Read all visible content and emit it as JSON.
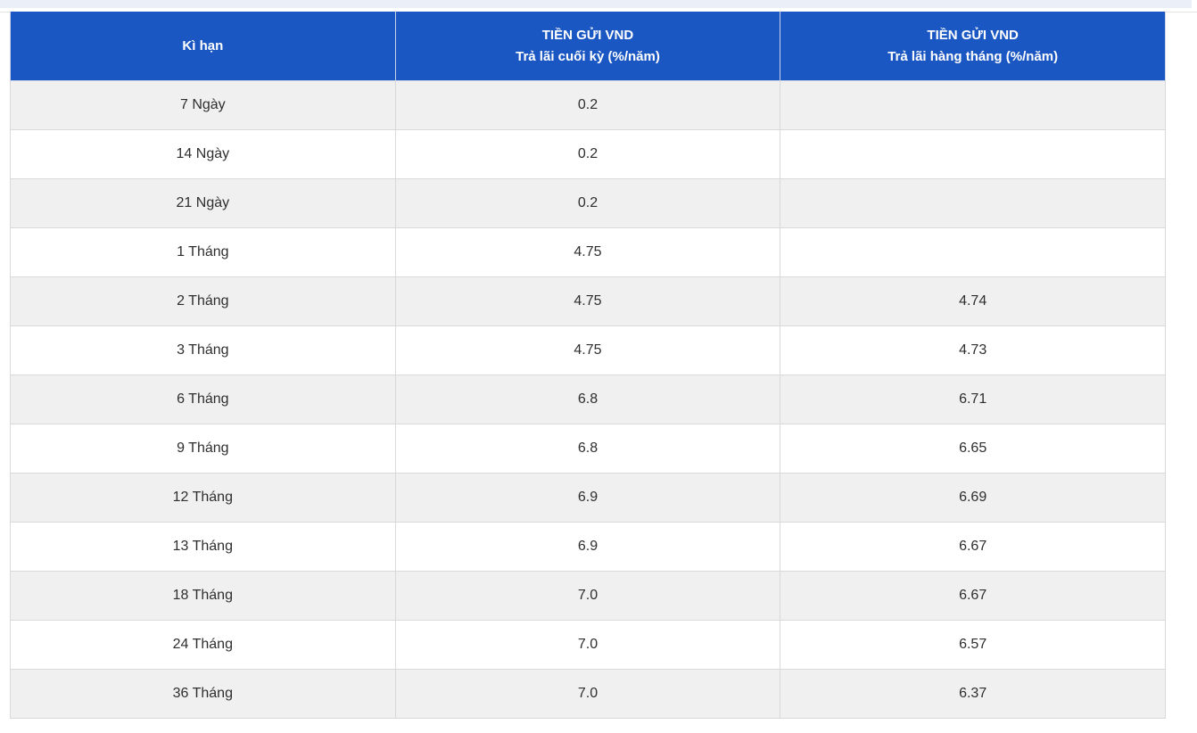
{
  "page": {
    "background": "#ffffff",
    "top_strip_color": "#ebf0f8"
  },
  "table": {
    "header_bg": "#1b57c2",
    "header_text_color": "#ffffff",
    "alt_row_bg": "#f0f0f0",
    "row_bg": "#ffffff",
    "border_color": "#d9d9d9",
    "columns": [
      {
        "label": "Kì hạn",
        "sublabel": ""
      },
      {
        "label": "TIỀN GỬI VND",
        "sublabel": "Trả lãi cuối kỳ (%/năm)"
      },
      {
        "label": "TIỀN GỬI VND",
        "sublabel": "Trả lãi hàng tháng (%/năm)"
      }
    ],
    "rows": [
      {
        "term": "7 Ngày",
        "end_of_term": "0.2",
        "monthly": ""
      },
      {
        "term": "14 Ngày",
        "end_of_term": "0.2",
        "monthly": ""
      },
      {
        "term": "21 Ngày",
        "end_of_term": "0.2",
        "monthly": ""
      },
      {
        "term": "1 Tháng",
        "end_of_term": "4.75",
        "monthly": ""
      },
      {
        "term": "2 Tháng",
        "end_of_term": "4.75",
        "monthly": "4.74"
      },
      {
        "term": "3 Tháng",
        "end_of_term": "4.75",
        "monthly": "4.73"
      },
      {
        "term": "6 Tháng",
        "end_of_term": "6.8",
        "monthly": "6.71"
      },
      {
        "term": "9 Tháng",
        "end_of_term": "6.8",
        "monthly": "6.65"
      },
      {
        "term": "12 Tháng",
        "end_of_term": "6.9",
        "monthly": "6.69"
      },
      {
        "term": "13 Tháng",
        "end_of_term": "6.9",
        "monthly": "6.67"
      },
      {
        "term": "18 Tháng",
        "end_of_term": "7.0",
        "monthly": "6.67"
      },
      {
        "term": "24 Tháng",
        "end_of_term": "7.0",
        "monthly": "6.57"
      },
      {
        "term": "36 Tháng",
        "end_of_term": "7.0",
        "monthly": "6.37"
      }
    ]
  }
}
